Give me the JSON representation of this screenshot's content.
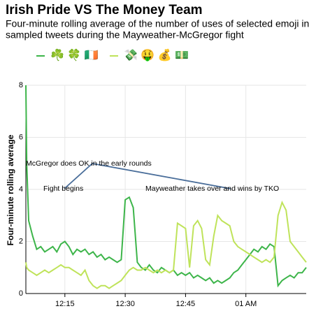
{
  "chart_data": {
    "type": "line",
    "title": "Irish Pride VS The Money Team",
    "subtitle": [
      "Four-minute rolling average of the number of uses of selected emoji in",
      "sampled tweets during the Mayweather-McGregor fight"
    ],
    "y_label": "Four-minute rolling average",
    "annotations": [
      "McGregor does OK  in the early rounds",
      "Fight begins",
      "Mayweather takes  over and wins by  TKO"
    ],
    "x": [
      5.3,
      5.5,
      6,
      7,
      8,
      9,
      10,
      11,
      12,
      13,
      14,
      15,
      16,
      17,
      18,
      19,
      20,
      21,
      22,
      23,
      24,
      25,
      26,
      27,
      28,
      29,
      30,
      31,
      32,
      33,
      34,
      35,
      36,
      37,
      38,
      39,
      40,
      41,
      42,
      43,
      44,
      45,
      46,
      47,
      48,
      49,
      50,
      51,
      52,
      53,
      54,
      55,
      56,
      57,
      58,
      59,
      60,
      61,
      62,
      63,
      64,
      65,
      66,
      67,
      68,
      69,
      70,
      71,
      72,
      73,
      74,
      75
    ],
    "series": [
      {
        "name": "☘️ 🍀 🇮🇪",
        "color": "#3db54a",
        "values": [
          8,
          5,
          2.8,
          2.2,
          1.7,
          1.8,
          1.6,
          1.7,
          1.8,
          1.6,
          1.9,
          2.0,
          1.8,
          1.5,
          1.7,
          1.6,
          1.7,
          1.5,
          1.6,
          1.4,
          1.5,
          1.3,
          1.4,
          1.3,
          1.2,
          1.3,
          3.6,
          3.7,
          3.3,
          1.2,
          1.0,
          0.9,
          1.1,
          0.9,
          0.8,
          1.0,
          0.9,
          0.8,
          0.9,
          0.7,
          0.8,
          0.7,
          0.8,
          0.6,
          0.7,
          0.6,
          0.5,
          0.6,
          0.4,
          0.5,
          0.4,
          0.5,
          0.6,
          0.8,
          0.9,
          1.1,
          1.3,
          1.5,
          1.7,
          1.6,
          1.8,
          1.7,
          1.9,
          1.8,
          0.3,
          0.5,
          0.6,
          0.7,
          0.6,
          0.8,
          0.8,
          1.0
        ]
      },
      {
        "name": "💸 🤑 💰 💵",
        "color": "#bfe35a",
        "values": [
          1.2,
          1.0,
          0.9,
          0.8,
          0.7,
          0.8,
          0.9,
          0.8,
          0.9,
          1.0,
          1.1,
          1.0,
          1.0,
          0.9,
          0.8,
          0.7,
          0.9,
          0.5,
          0.3,
          0.2,
          0.3,
          0.3,
          0.2,
          0.3,
          0.4,
          0.5,
          0.7,
          0.9,
          1.0,
          0.9,
          0.9,
          1.0,
          0.9,
          0.8,
          0.9,
          0.8,
          0.9,
          0.8,
          0.9,
          2.7,
          2.6,
          2.5,
          1.0,
          2.6,
          2.8,
          2.5,
          1.3,
          1.1,
          2.2,
          3.0,
          2.8,
          2.7,
          2.6,
          2.0,
          1.8,
          1.7,
          1.6,
          1.5,
          1.4,
          1.3,
          1.2,
          1.3,
          1.2,
          1.4,
          3.0,
          3.5,
          3.2,
          2.0,
          1.8,
          1.6,
          1.4,
          1.2
        ]
      }
    ],
    "xlim": [
      5.3,
      75
    ],
    "xticks": [
      {
        "value": 15,
        "label": "12:15"
      },
      {
        "value": 30,
        "label": "12:30"
      },
      {
        "value": 45,
        "label": "12:45"
      },
      {
        "value": 60,
        "label": "01 AM"
      }
    ],
    "ylim": [
      0,
      8
    ],
    "yticks": [
      0,
      2,
      4,
      6,
      8
    ],
    "grid": true
  }
}
